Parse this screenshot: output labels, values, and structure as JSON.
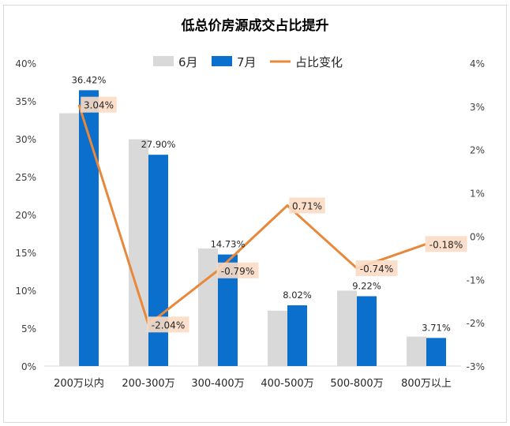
{
  "chart_data": {
    "type": "bar",
    "title": "低总价房源成交占比提升",
    "categories": [
      "200万以内",
      "200-300万",
      "300-400万",
      "400-500万",
      "500-800万",
      "800万以上"
    ],
    "series": [
      {
        "name": "6月",
        "type": "bar",
        "axis": "left",
        "color": "#d9d9d9",
        "values": [
          33.38,
          29.94,
          15.52,
          7.31,
          9.96,
          3.89
        ]
      },
      {
        "name": "7月",
        "type": "bar",
        "axis": "left",
        "color": "#0b6fce",
        "values": [
          36.42,
          27.9,
          14.73,
          8.02,
          9.22,
          3.71
        ],
        "labels": [
          "36.42%",
          "27.90%",
          "14.73%",
          "8.02%",
          "9.22%",
          "3.71%"
        ]
      },
      {
        "name": "占比变化",
        "type": "line",
        "axis": "right",
        "color": "#e8883a",
        "values": [
          3.04,
          -2.04,
          -0.79,
          0.71,
          -0.74,
          -0.18
        ],
        "labels": [
          "3.04%",
          "-2.04%",
          "-0.79%",
          "0.71%",
          "-0.74%",
          "-0.18%"
        ]
      }
    ],
    "y_left": {
      "range": [
        0,
        40
      ],
      "ticks": [
        "0%",
        "5%",
        "10%",
        "15%",
        "20%",
        "25%",
        "30%",
        "35%",
        "40%"
      ]
    },
    "y_right": {
      "range": [
        -3,
        4
      ],
      "ticks": [
        "-3%",
        "-2%",
        "-1%",
        "0%",
        "1%",
        "2%",
        "3%",
        "4%"
      ]
    },
    "grid": false,
    "legend": "top"
  }
}
